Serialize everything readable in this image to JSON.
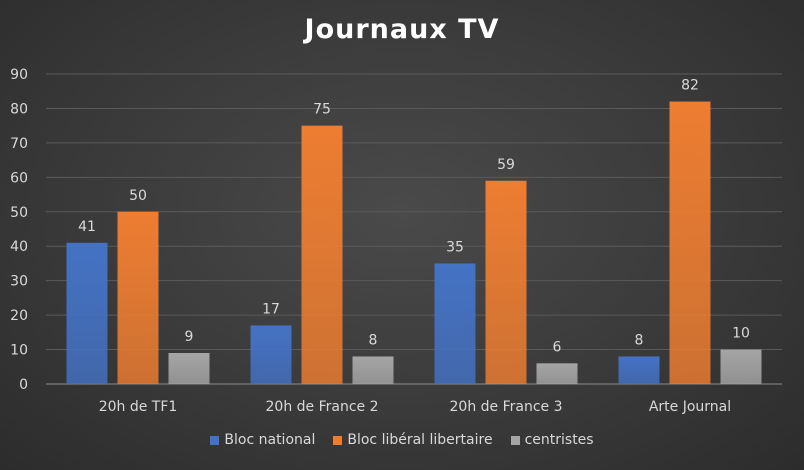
{
  "chart_data": {
    "type": "bar",
    "title": "Journaux TV",
    "categories": [
      "20h de TF1",
      "20h de France 2",
      "20h de France 3",
      "Arte Journal"
    ],
    "series": [
      {
        "name": "Bloc national",
        "values": [
          41,
          17,
          35,
          8
        ],
        "color": "#4472c4"
      },
      {
        "name": "Bloc libéral libertaire",
        "values": [
          50,
          75,
          59,
          82
        ],
        "color": "#ed7d31"
      },
      {
        "name": "centristes",
        "values": [
          9,
          8,
          6,
          10
        ],
        "color": "#a5a5a5"
      }
    ],
    "yticks": [
      "0",
      "10",
      "20",
      "30",
      "40",
      "50",
      "60",
      "70",
      "80",
      "90"
    ],
    "ylim": [
      0,
      90
    ],
    "grid": true,
    "legend_position": "bottom"
  }
}
